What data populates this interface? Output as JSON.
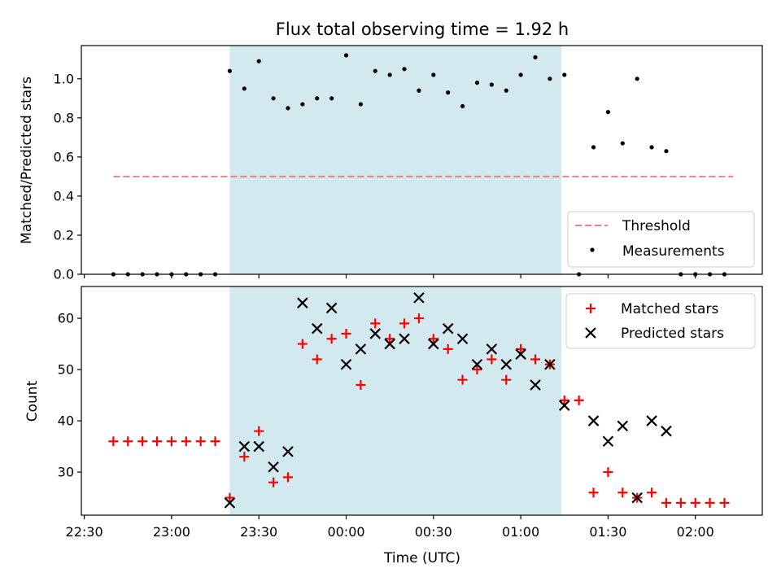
{
  "chart_data": {
    "type": "scatter",
    "title": "Flux total observing time = 1.92 h",
    "xlabel": "Time (UTC)",
    "x_ticks": [
      "22:30",
      "23:00",
      "23:30",
      "00:00",
      "00:30",
      "01:00",
      "01:30",
      "02:00"
    ],
    "x_tick_offsets_min": [
      -90,
      -60,
      -30,
      0,
      30,
      60,
      90,
      120
    ],
    "xlim_minutes_from_midnight": [
      -91,
      143
    ],
    "shaded_span_minutes_from_midnight": [
      -40,
      74
    ],
    "shaded_color": "#d3e9f0",
    "panels": [
      {
        "ylabel": "Matched/Predicted stars",
        "ylim": [
          0,
          1.17
        ],
        "y_ticks": [
          0.0,
          0.2,
          0.4,
          0.6,
          0.8,
          1.0
        ],
        "y_tick_labels": [
          "0.0",
          "0.2",
          "0.4",
          "0.6",
          "0.8",
          "1.0"
        ],
        "legend_position": "lower-right",
        "threshold": {
          "name": "Threshold",
          "value": 0.5,
          "x_range": [
            -80,
            133
          ],
          "color": "#f08080"
        },
        "series": [
          {
            "name": "Measurements",
            "marker": "dot",
            "color": "#000000",
            "x": [
              -80,
              -75,
              -70,
              -65,
              -60,
              -55,
              -50,
              -45,
              -40,
              -35,
              -30,
              -25,
              -20,
              -15,
              -10,
              -5,
              0,
              5,
              10,
              15,
              20,
              25,
              30,
              35,
              40,
              45,
              50,
              55,
              60,
              65,
              70,
              75,
              80,
              85,
              90,
              95,
              100,
              105,
              110,
              115,
              120,
              125,
              130
            ],
            "y": [
              0,
              0,
              0,
              0,
              0,
              0,
              0,
              0,
              1.04,
              0.95,
              1.09,
              0.9,
              0.85,
              0.87,
              0.9,
              0.9,
              1.12,
              0.87,
              1.04,
              1.02,
              1.05,
              0.94,
              1.02,
              0.93,
              0.86,
              0.98,
              0.97,
              0.94,
              1.02,
              1.11,
              1.0,
              1.02,
              0,
              0.65,
              0.83,
              0.67,
              1.0,
              0.65,
              0.63,
              0,
              0,
              0,
              0
            ]
          }
        ]
      },
      {
        "ylabel": "Count",
        "ylim": [
          21.6,
          66.2
        ],
        "y_ticks": [
          30,
          40,
          50,
          60
        ],
        "y_tick_labels": [
          "30",
          "40",
          "50",
          "60"
        ],
        "legend_position": "upper-right",
        "series": [
          {
            "name": "Matched stars",
            "marker": "plus",
            "color": "#ff0000",
            "x": [
              -80,
              -75,
              -70,
              -65,
              -60,
              -55,
              -50,
              -45,
              -40,
              -35,
              -30,
              -25,
              -20,
              -15,
              -10,
              -5,
              0,
              5,
              10,
              15,
              20,
              25,
              30,
              35,
              40,
              45,
              50,
              55,
              60,
              65,
              70,
              75,
              80,
              85,
              90,
              95,
              100,
              105,
              110,
              115,
              120,
              125,
              130
            ],
            "y": [
              36,
              36,
              36,
              36,
              36,
              36,
              36,
              36,
              25,
              33,
              38,
              28,
              29,
              55,
              52,
              56,
              57,
              47,
              59,
              56,
              59,
              60,
              56,
              54,
              48,
              50,
              52,
              48,
              54,
              52,
              51,
              44,
              44,
              26,
              30,
              26,
              25,
              26,
              24,
              24,
              24,
              24,
              24
            ]
          },
          {
            "name": "Predicted stars",
            "marker": "x",
            "color": "#000000",
            "x": [
              -40,
              -35,
              -30,
              -25,
              -20,
              -15,
              -10,
              -5,
              0,
              5,
              10,
              15,
              20,
              25,
              30,
              35,
              40,
              45,
              50,
              55,
              60,
              65,
              70,
              75,
              85,
              90,
              95,
              100,
              105,
              110
            ],
            "y": [
              24,
              35,
              35,
              31,
              34,
              63,
              58,
              62,
              51,
              54,
              57,
              55,
              56,
              64,
              55,
              58,
              56,
              51,
              54,
              51,
              53,
              47,
              51,
              43,
              40,
              36,
              39,
              25,
              40,
              38
            ]
          }
        ]
      }
    ]
  }
}
